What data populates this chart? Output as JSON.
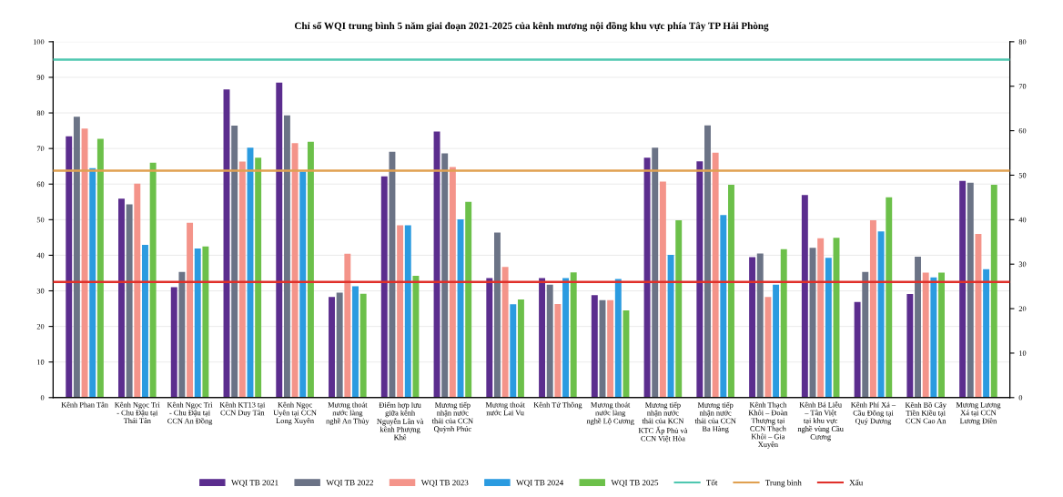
{
  "chart_data": {
    "type": "bar",
    "title": "Chỉ số WQI trung bình 5 năm giai đoạn 2021-2025 của kênh mương nội đồng khu vực phía Tây TP Hải Phòng",
    "categories": [
      "Kênh Phan Tân",
      "Kênh Ngọc Trì - Chu Đậu tại Thái Tân",
      "Kênh Ngọc Trì - Chu Đậu tại CCN An Đồng",
      "Kênh KT13 tại CCN Duy Tân",
      "Kênh Ngọc Uyên tại CCN Long Xuyên",
      "Mương thoát nước làng nghề An Thủy",
      "Điểm hợp lưu giữa kênh Nguyễn Lân và kênh Phượng Khê",
      "Mương tiếp nhận nước thải của CCN Quỳnh Phúc",
      "Mương thoát nước Lai Vu",
      "Kênh Tứ Thông",
      "Mương thoát nước làng nghề Lộ Cương",
      "Mương tiếp nhận nước thải của KCN KTC Ấp Phủ và CCN Việt Hòa",
      "Mương tiếp nhận nước thải của CCN Ba Hàng",
      "Kênh Thạch Khôi – Đoàn Thượng tại CCN Thạch Khôi – Gia Xuyên",
      "Kênh Bá Liễu – Tân Việt tại khu vực nghề vùng Cầu Cương",
      "Kênh Phí Xá – Cầu Đông tại Quý Dương",
      "Kênh Bồ Cây Tiền Kiều tại CCN Cao An",
      "Mương Lương Xá tại CCN Lương Điền"
    ],
    "series": [
      {
        "name": "WQI TB 2021",
        "color": "#5b2d8e",
        "values": [
          73.4,
          55.9,
          31.0,
          86.6,
          88.5,
          28.3,
          62.2,
          74.8,
          33.6,
          33.6,
          28.8,
          67.4,
          66.4,
          39.5,
          56.9,
          26.9,
          29.1,
          60.9
        ]
      },
      {
        "name": "WQI TB 2022",
        "color": "#6b7386",
        "values": [
          78.9,
          54.3,
          35.3,
          76.4,
          79.3,
          29.5,
          69.1,
          68.6,
          46.4,
          31.7,
          27.4,
          70.2,
          76.5,
          40.5,
          42.1,
          35.3,
          39.6,
          60.4
        ]
      },
      {
        "name": "WQI TB 2023",
        "color": "#f4948a",
        "values": [
          75.6,
          60.1,
          49.1,
          66.3,
          71.5,
          40.4,
          48.4,
          64.8,
          36.7,
          26.3,
          27.4,
          60.7,
          68.8,
          28.3,
          44.8,
          49.8,
          35.1,
          46.0
        ]
      },
      {
        "name": "WQI TB 2024",
        "color": "#2b9be0",
        "values": [
          64.5,
          42.9,
          41.9,
          70.2,
          63.5,
          31.3,
          48.4,
          50.1,
          26.2,
          33.6,
          33.3,
          40.1,
          51.3,
          31.7,
          39.3,
          46.7,
          33.8,
          36.1
        ]
      },
      {
        "name": "WQI TB 2025",
        "color": "#6cc04a",
        "values": [
          72.7,
          66.0,
          42.5,
          67.4,
          71.9,
          29.2,
          34.2,
          55.0,
          27.6,
          35.2,
          24.5,
          49.8,
          59.8,
          41.7,
          44.9,
          56.3,
          35.1,
          59.8
        ]
      }
    ],
    "ylim": [
      0,
      100
    ],
    "yticks": [
      0,
      10,
      20,
      30,
      40,
      50,
      60,
      70,
      80,
      90,
      100
    ],
    "y2lim": [
      0,
      80
    ],
    "y2ticks": [
      0,
      10,
      20,
      30,
      40,
      50,
      60,
      70,
      80
    ],
    "ref_lines": [
      {
        "axis": "y2",
        "value": 76,
        "label": "Tốt",
        "color": "#4fc7b0"
      },
      {
        "axis": "y2",
        "value": 51,
        "label": "Trung bình",
        "color": "#e0a050"
      },
      {
        "axis": "y2",
        "value": 26,
        "label": "Xấu",
        "color": "#e0302a"
      }
    ],
    "grid": "y",
    "legend": "bottom"
  }
}
